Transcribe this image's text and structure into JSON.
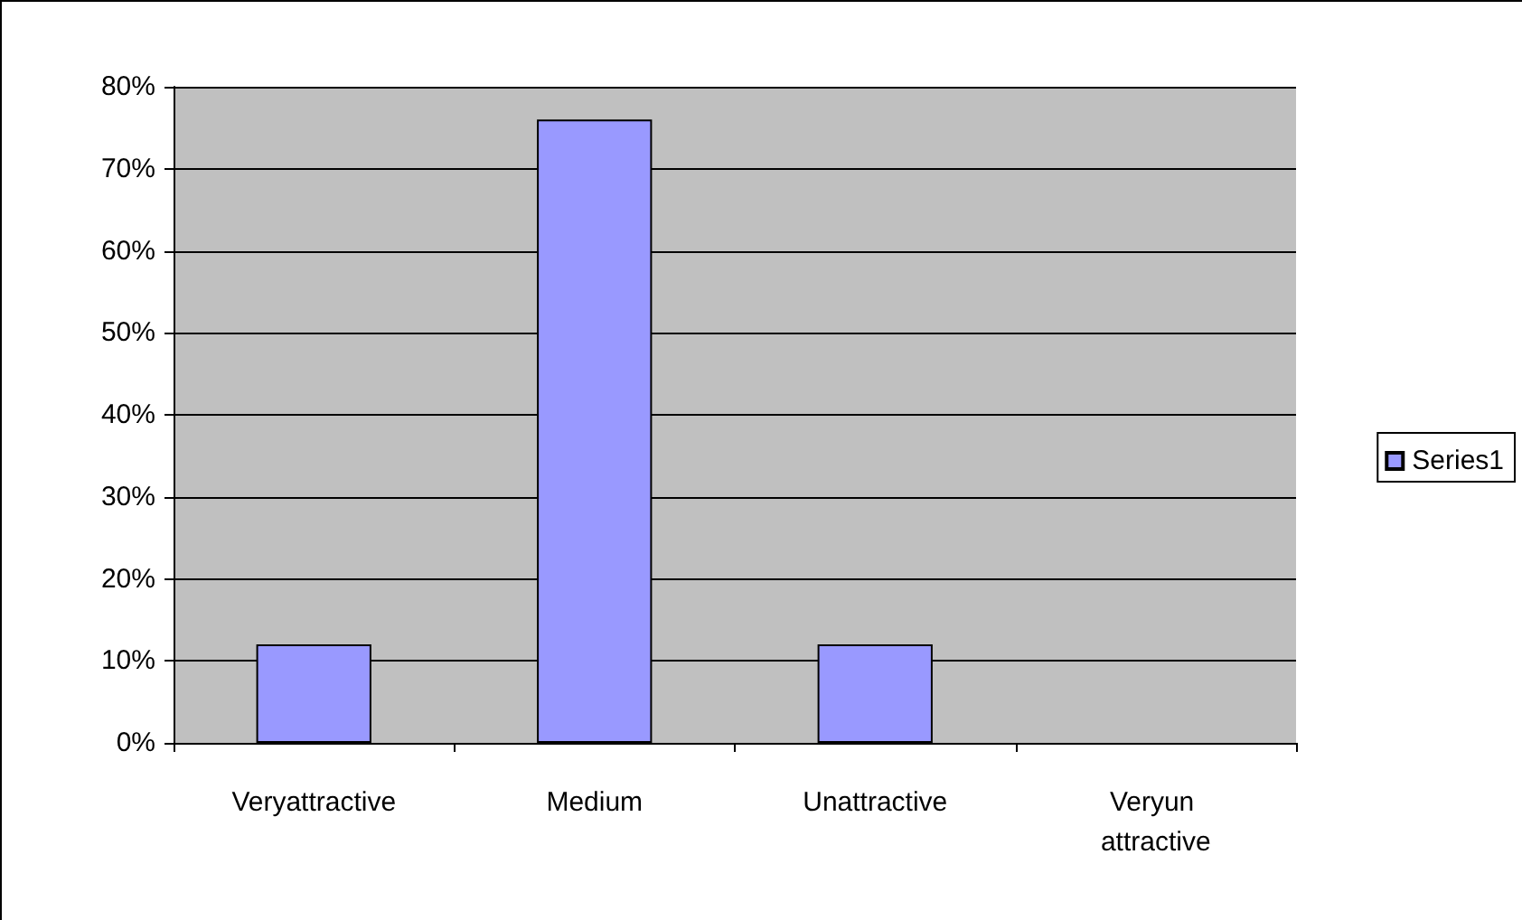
{
  "chart_data": {
    "type": "bar",
    "categories": [
      "Veryattractive",
      "Medium",
      "Unattractive",
      "Veryun attractive"
    ],
    "series": [
      {
        "name": "Series1",
        "color": "#9999ff",
        "values": [
          12,
          76,
          12,
          null
        ]
      }
    ],
    "ylim": [
      0,
      80
    ],
    "yticks": [
      {
        "value": 0,
        "label": "0%"
      },
      {
        "value": 10,
        "label": "10%"
      },
      {
        "value": 20,
        "label": "20%"
      },
      {
        "value": 30,
        "label": "30%"
      },
      {
        "value": 40,
        "label": "40%"
      },
      {
        "value": 50,
        "label": "50%"
      },
      {
        "value": 60,
        "label": "60%"
      },
      {
        "value": 70,
        "label": "70%"
      },
      {
        "value": 80,
        "label": "80%"
      }
    ],
    "grid": "y",
    "legend": "right"
  }
}
